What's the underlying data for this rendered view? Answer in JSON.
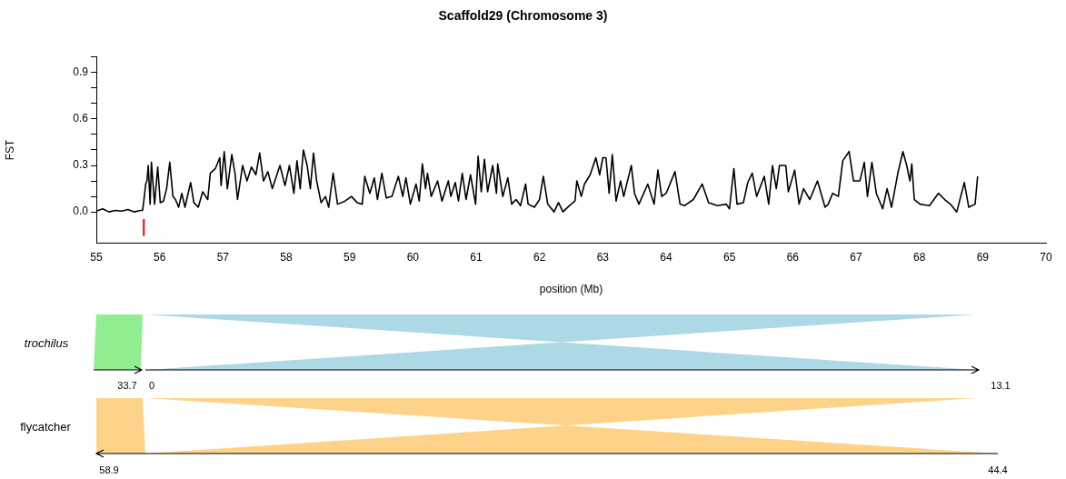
{
  "chart_data": [
    {
      "type": "line",
      "title": "Scaffold29 (Chromosome 3)",
      "xlabel": "position (Mb)",
      "ylabel": "FST",
      "marker": "none",
      "grid": false,
      "legend": false,
      "series": [
        {
          "color": "#000000",
          "x": [
            55.0,
            55.1,
            55.2,
            55.3,
            55.4,
            55.5,
            55.6,
            55.7,
            55.73,
            55.75,
            55.78,
            55.8,
            55.82,
            55.85,
            55.87,
            55.92,
            55.97,
            56.01,
            56.06,
            56.11,
            56.16,
            56.21,
            56.25,
            56.3,
            56.35,
            56.4,
            56.49,
            56.54,
            56.61,
            56.68,
            56.76,
            56.8,
            56.88,
            56.95,
            56.97,
            57.02,
            57.07,
            57.14,
            57.19,
            57.23,
            57.31,
            57.38,
            57.45,
            57.52,
            57.58,
            57.64,
            57.71,
            57.78,
            57.9,
            57.98,
            58.05,
            58.12,
            58.17,
            58.22,
            58.27,
            58.33,
            58.38,
            58.43,
            58.48,
            58.55,
            58.62,
            58.67,
            58.74,
            58.81,
            58.93,
            59.03,
            59.12,
            59.2,
            59.24,
            59.32,
            59.39,
            59.44,
            59.51,
            59.58,
            59.67,
            59.77,
            59.84,
            59.89,
            59.96,
            60.05,
            60.1,
            60.15,
            60.2,
            60.23,
            60.29,
            60.39,
            60.46,
            60.56,
            60.6,
            60.67,
            60.72,
            60.78,
            60.84,
            60.91,
            60.99,
            61.03,
            61.08,
            61.13,
            61.18,
            61.26,
            61.32,
            61.34,
            61.42,
            61.5,
            61.56,
            61.63,
            61.7,
            61.78,
            61.82,
            61.92,
            62.0,
            62.06,
            62.13,
            62.23,
            62.3,
            62.37,
            62.47,
            62.56,
            62.59,
            62.66,
            62.71,
            62.8,
            62.89,
            62.95,
            63.0,
            63.05,
            63.1,
            63.15,
            63.21,
            63.28,
            63.33,
            63.45,
            63.5,
            63.57,
            63.71,
            63.81,
            63.87,
            63.93,
            64.0,
            64.14,
            64.22,
            64.29,
            64.43,
            64.57,
            64.67,
            64.81,
            64.95,
            65.0,
            65.07,
            65.12,
            65.22,
            65.29,
            65.36,
            65.43,
            65.55,
            65.62,
            65.68,
            65.74,
            65.79,
            65.89,
            65.93,
            66.03,
            66.1,
            66.17,
            66.27,
            66.39,
            66.51,
            66.56,
            66.63,
            66.72,
            66.79,
            66.89,
            66.96,
            67.06,
            67.13,
            67.18,
            67.25,
            67.32,
            67.42,
            67.49,
            67.56,
            67.66,
            67.74,
            67.8,
            67.85,
            67.88,
            67.92,
            68.01,
            68.16,
            68.3,
            68.4,
            68.49,
            68.59,
            68.71,
            68.78,
            68.88,
            68.92
          ],
          "values": [
            0.005,
            0.02,
            0.0,
            0.01,
            0.005,
            0.015,
            0.0,
            0.01,
            0.01,
            0.07,
            0.18,
            0.2,
            0.3,
            0.05,
            0.32,
            0.05,
            0.29,
            0.06,
            0.07,
            0.15,
            0.32,
            0.1,
            0.08,
            0.03,
            0.12,
            0.03,
            0.19,
            0.06,
            0.03,
            0.13,
            0.08,
            0.25,
            0.28,
            0.35,
            0.17,
            0.39,
            0.15,
            0.37,
            0.25,
            0.08,
            0.3,
            0.2,
            0.29,
            0.24,
            0.38,
            0.2,
            0.26,
            0.15,
            0.3,
            0.17,
            0.3,
            0.12,
            0.33,
            0.15,
            0.4,
            0.3,
            0.15,
            0.38,
            0.2,
            0.06,
            0.1,
            0.03,
            0.25,
            0.05,
            0.07,
            0.1,
            0.06,
            0.05,
            0.23,
            0.12,
            0.22,
            0.08,
            0.25,
            0.09,
            0.1,
            0.23,
            0.1,
            0.22,
            0.05,
            0.18,
            0.07,
            0.31,
            0.15,
            0.25,
            0.1,
            0.2,
            0.07,
            0.2,
            0.1,
            0.19,
            0.07,
            0.25,
            0.08,
            0.24,
            0.05,
            0.36,
            0.13,
            0.34,
            0.13,
            0.3,
            0.12,
            0.31,
            0.1,
            0.22,
            0.05,
            0.08,
            0.04,
            0.18,
            0.05,
            0.03,
            0.08,
            0.23,
            0.05,
            0.0,
            0.06,
            0.0,
            0.04,
            0.07,
            0.2,
            0.1,
            0.18,
            0.24,
            0.35,
            0.24,
            0.35,
            0.35,
            0.12,
            0.37,
            0.07,
            0.2,
            0.1,
            0.3,
            0.12,
            0.05,
            0.18,
            0.05,
            0.27,
            0.1,
            0.12,
            0.26,
            0.05,
            0.04,
            0.08,
            0.18,
            0.06,
            0.04,
            0.05,
            0.02,
            0.28,
            0.05,
            0.06,
            0.19,
            0.25,
            0.1,
            0.23,
            0.05,
            0.3,
            0.15,
            0.3,
            0.3,
            0.13,
            0.27,
            0.05,
            0.15,
            0.08,
            0.2,
            0.03,
            0.05,
            0.12,
            0.1,
            0.33,
            0.39,
            0.2,
            0.2,
            0.32,
            0.1,
            0.32,
            0.12,
            0.02,
            0.15,
            0.03,
            0.25,
            0.39,
            0.3,
            0.2,
            0.31,
            0.08,
            0.05,
            0.04,
            0.12,
            0.08,
            0.05,
            0.0,
            0.19,
            0.03,
            0.05,
            0.23
          ]
        },
        {
          "color": "#ff0000",
          "x": [
            55.75,
            55.75
          ],
          "values": [
            -0.05,
            -0.15
          ]
        }
      ],
      "xlim": [
        55,
        70
      ],
      "xticks": [
        55,
        56,
        57,
        58,
        59,
        60,
        61,
        62,
        63,
        64,
        65,
        66,
        67,
        68,
        69,
        70
      ],
      "ylim": [
        -0.2,
        1.0
      ],
      "yticks": [
        {
          "value": 0,
          "label": "0.0"
        },
        {
          "value": 0.1,
          "label": null
        },
        {
          "value": 0.2,
          "label": null
        },
        0.3,
        {
          "value": 0.4,
          "label": null
        },
        {
          "value": 0.5,
          "label": null
        },
        0.6,
        {
          "value": 0.7,
          "label": null
        },
        {
          "value": 0.8,
          "label": null
        },
        0.9,
        {
          "value": 1.0,
          "label": null
        }
      ]
    },
    {
      "type": "other",
      "annotations": [
        "trochilus",
        "flycatcher",
        "33.7",
        "0",
        "13.1",
        "58.9",
        "44.4"
      ]
    }
  ]
}
